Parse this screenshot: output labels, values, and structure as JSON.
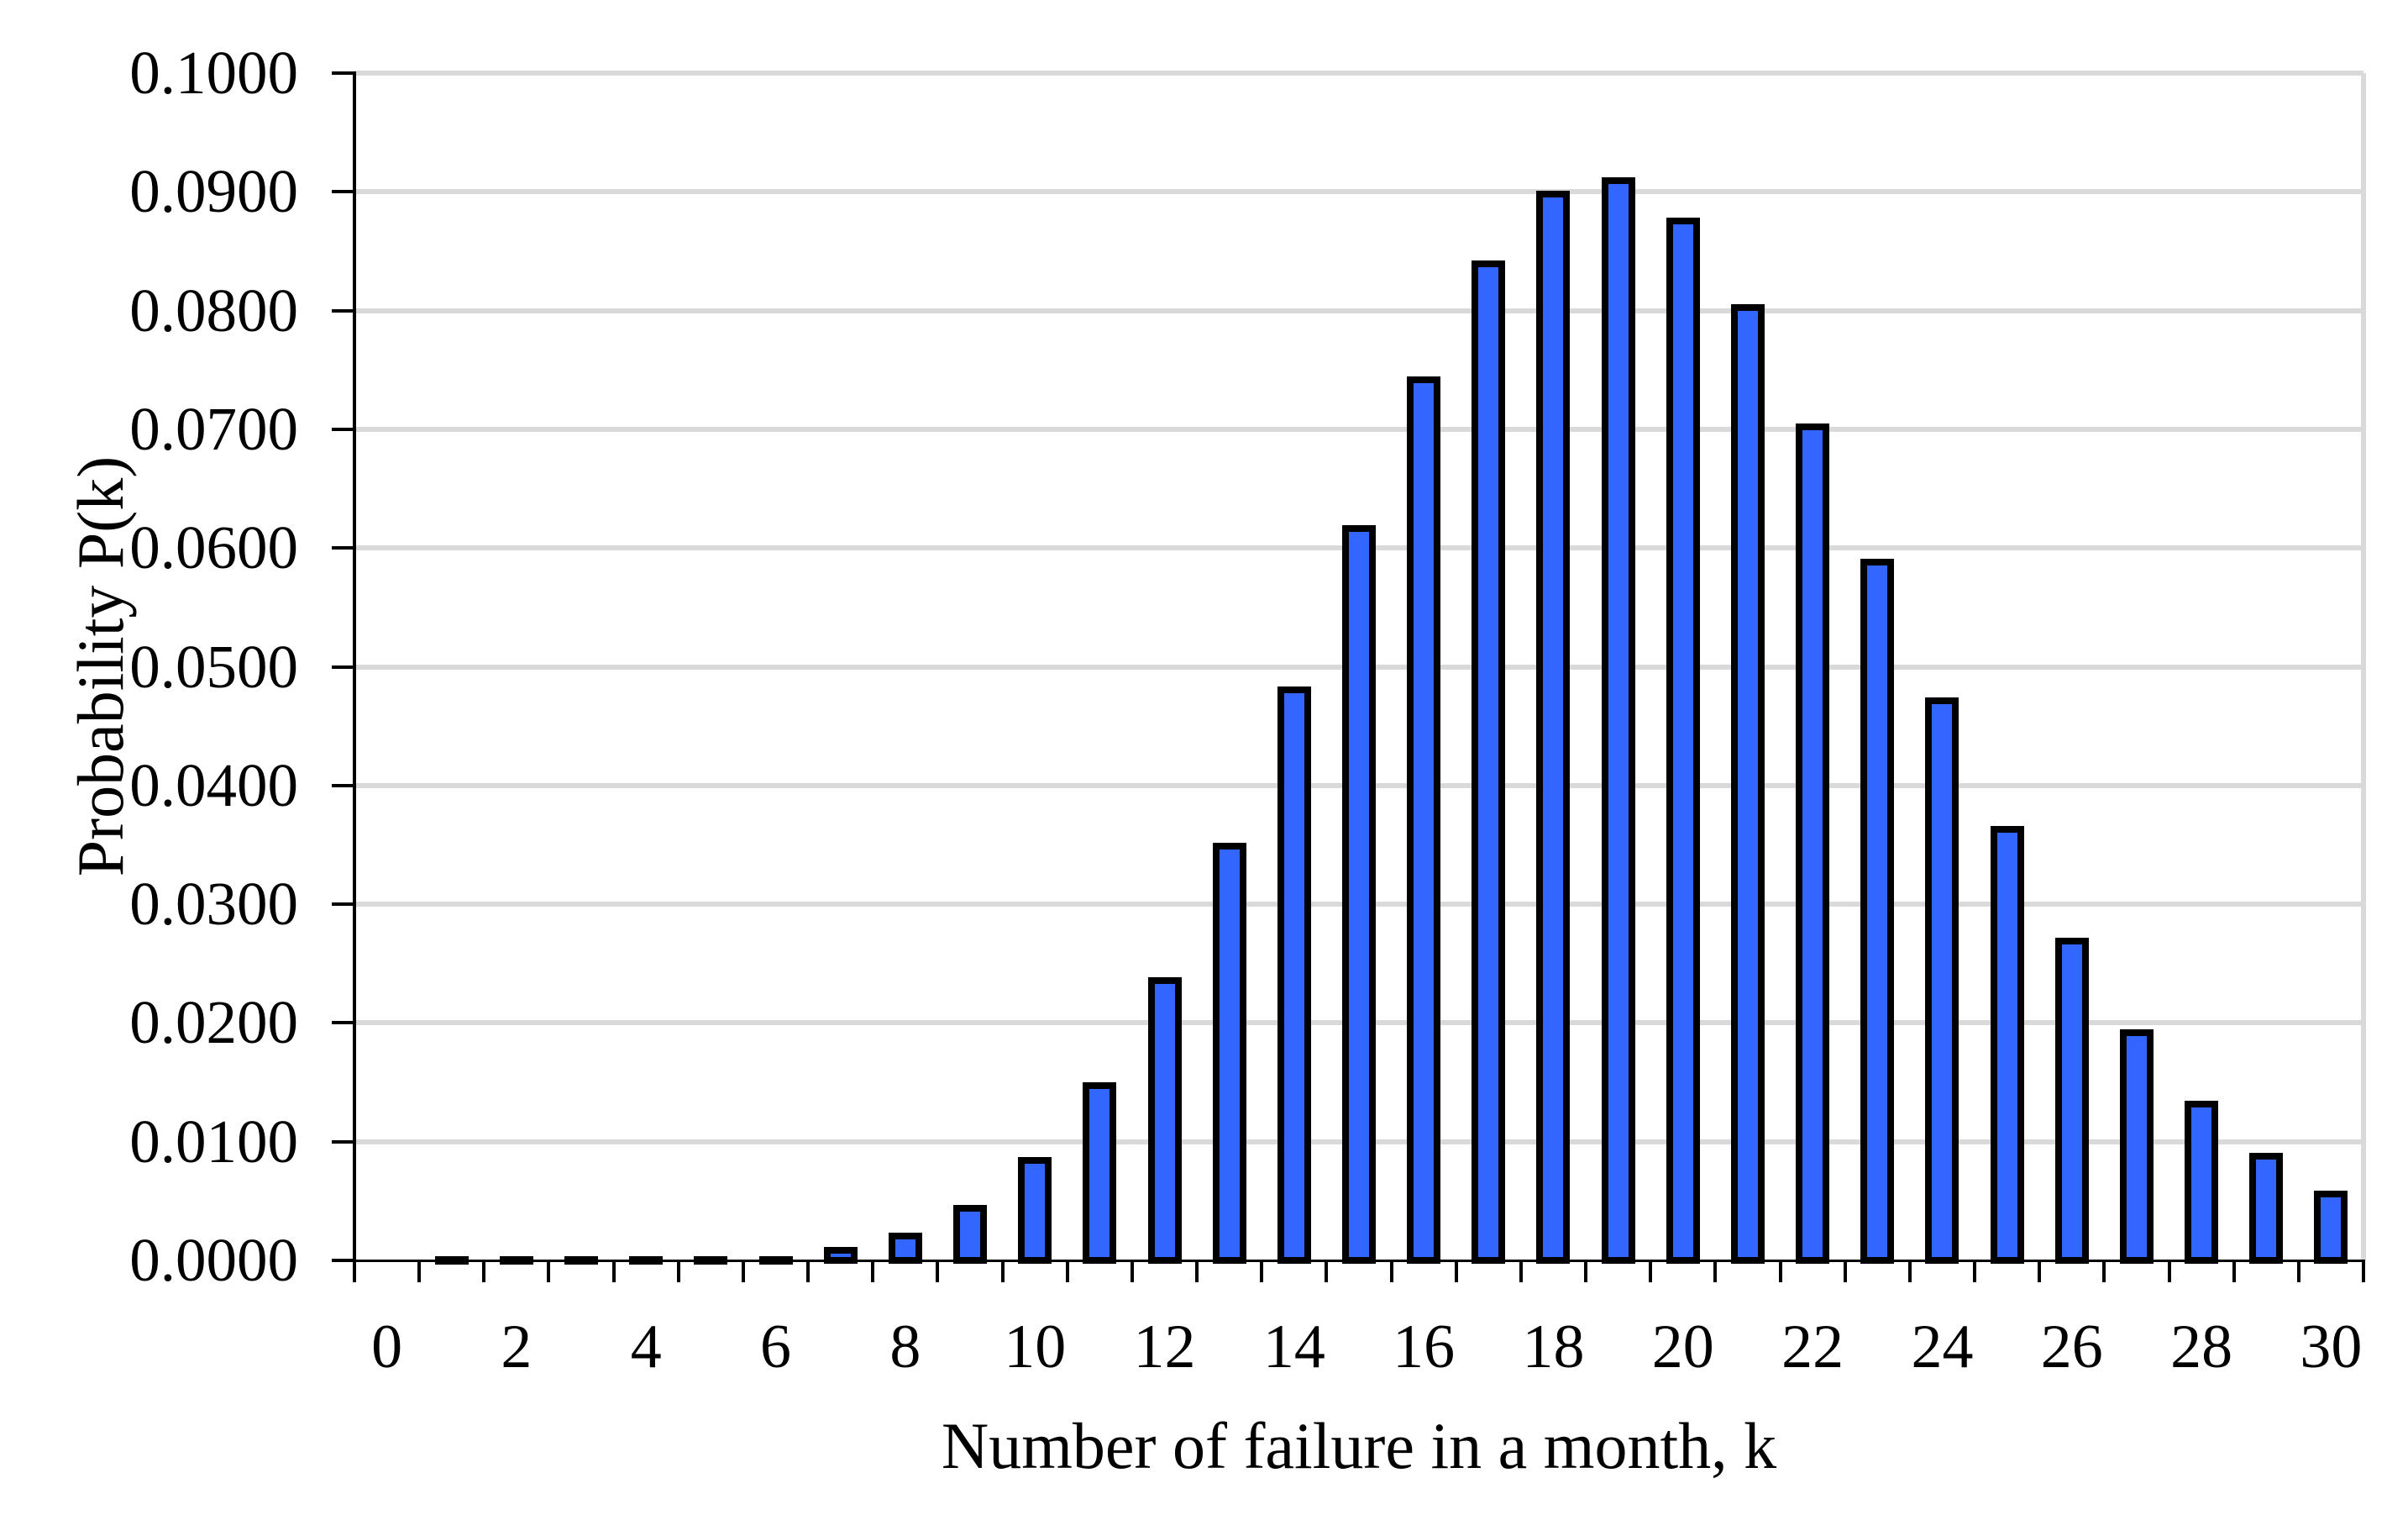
{
  "figure": {
    "background": "#ffffff",
    "accent_colors": {
      "bar_fill": "#3366ff",
      "bar_outline": "#000000",
      "gridline": "#d9d9d9",
      "axis": "#000000",
      "text": "#000000"
    }
  },
  "chart_data": {
    "type": "bar",
    "title": "",
    "xlabel": "Number of failure in a month, k",
    "ylabel": "Probability P(k)",
    "categories": [
      0,
      1,
      2,
      3,
      4,
      5,
      6,
      7,
      8,
      9,
      10,
      11,
      12,
      13,
      14,
      15,
      16,
      17,
      18,
      19,
      20,
      21,
      22,
      23,
      24,
      25,
      26,
      27,
      28,
      29,
      30
    ],
    "values": [
      0,
      1e-07,
      8e-07,
      5.2e-06,
      2.5e-05,
      9.6e-05,
      0.000308,
      0.000848,
      0.00204,
      0.004364,
      0.008402,
      0.014703,
      0.023586,
      0.034925,
      0.048022,
      0.061629,
      0.074148,
      0.083962,
      0.089793,
      0.090975,
      0.087563,
      0.080266,
      0.070233,
      0.058781,
      0.047147,
      0.036303,
      0.026878,
      0.019163,
      0.013175,
      0.008746,
      0.005612
    ],
    "x_tick_labels": [
      "0",
      "2",
      "4",
      "6",
      "8",
      "10",
      "12",
      "14",
      "16",
      "18",
      "20",
      "22",
      "24",
      "26",
      "28",
      "30"
    ],
    "x_tick_step": 2,
    "y_tick_labels": [
      "0.1000",
      "0.0900",
      "0.0800",
      "0.0700",
      "0.0600",
      "0.0500",
      "0.0400",
      "0.0300",
      "0.0200",
      "0.0100",
      "0.0000"
    ],
    "ylim": [
      0,
      0.1
    ],
    "y_tick_step": 0.01,
    "grid": "horizontal",
    "legend": "none",
    "bar_gap_ratio": 0.48
  }
}
